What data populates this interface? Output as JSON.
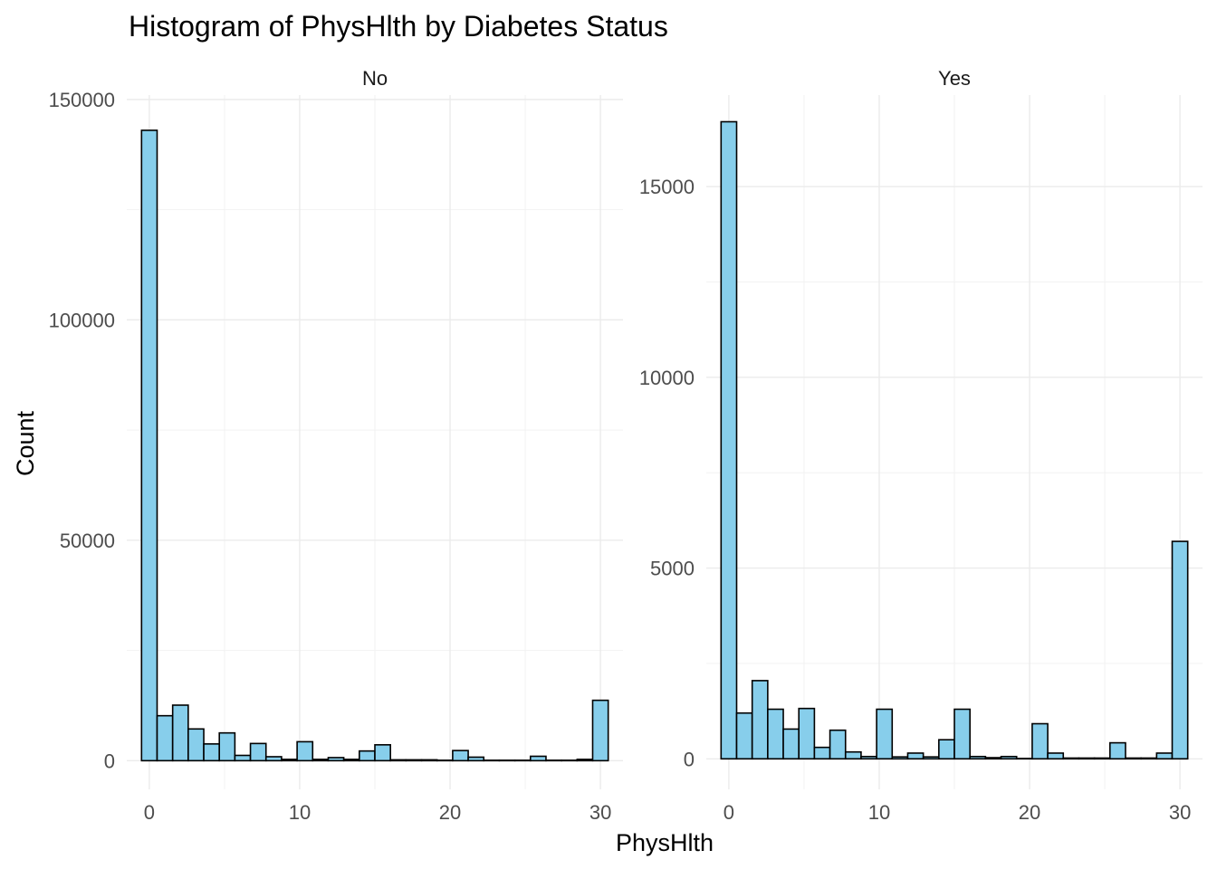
{
  "chart_data": {
    "type": "bar",
    "title": "Histogram of PhysHlth by Diabetes Status",
    "xlabel": "PhysHlth",
    "ylabel": "Count",
    "fill_color": "#87CEEB",
    "outline_color": "#000000",
    "grid": true,
    "x_ticks": [
      "0",
      "10",
      "20",
      "30"
    ],
    "xlim": [
      -1.5,
      31.5
    ],
    "bin_centers": [
      0,
      1.0345,
      2.069,
      3.1034,
      4.1379,
      5.1724,
      6.2069,
      7.2414,
      8.2759,
      9.3103,
      10.3448,
      11.3793,
      12.4138,
      13.4483,
      14.4828,
      15.5172,
      16.5517,
      17.5862,
      18.6207,
      19.6552,
      20.6897,
      21.7241,
      22.7586,
      23.7931,
      24.8276,
      25.8621,
      26.8966,
      27.931,
      28.9655,
      30
    ],
    "panels": [
      {
        "name": "No",
        "ylim": [
          -6500,
          151000
        ],
        "y_ticks": [
          0,
          50000,
          100000,
          150000
        ],
        "y_tick_labels": [
          "0",
          "50000",
          "100000",
          "150000"
        ],
        "values": [
          143000,
          10200,
          12600,
          7200,
          3800,
          6300,
          1200,
          3900,
          900,
          300,
          4300,
          300,
          700,
          300,
          2200,
          3600,
          200,
          200,
          200,
          100,
          2300,
          800,
          100,
          100,
          100,
          1000,
          100,
          100,
          300,
          13700
        ]
      },
      {
        "name": "Yes",
        "ylim": [
          -800,
          17400
        ],
        "y_ticks": [
          0,
          5000,
          10000,
          15000
        ],
        "y_tick_labels": [
          "0",
          "5000",
          "10000",
          "15000"
        ],
        "values": [
          16700,
          1200,
          2050,
          1300,
          780,
          1320,
          300,
          750,
          180,
          60,
          1300,
          50,
          150,
          50,
          500,
          1300,
          60,
          30,
          60,
          10,
          920,
          150,
          20,
          20,
          20,
          420,
          20,
          20,
          150,
          5700
        ]
      }
    ]
  }
}
